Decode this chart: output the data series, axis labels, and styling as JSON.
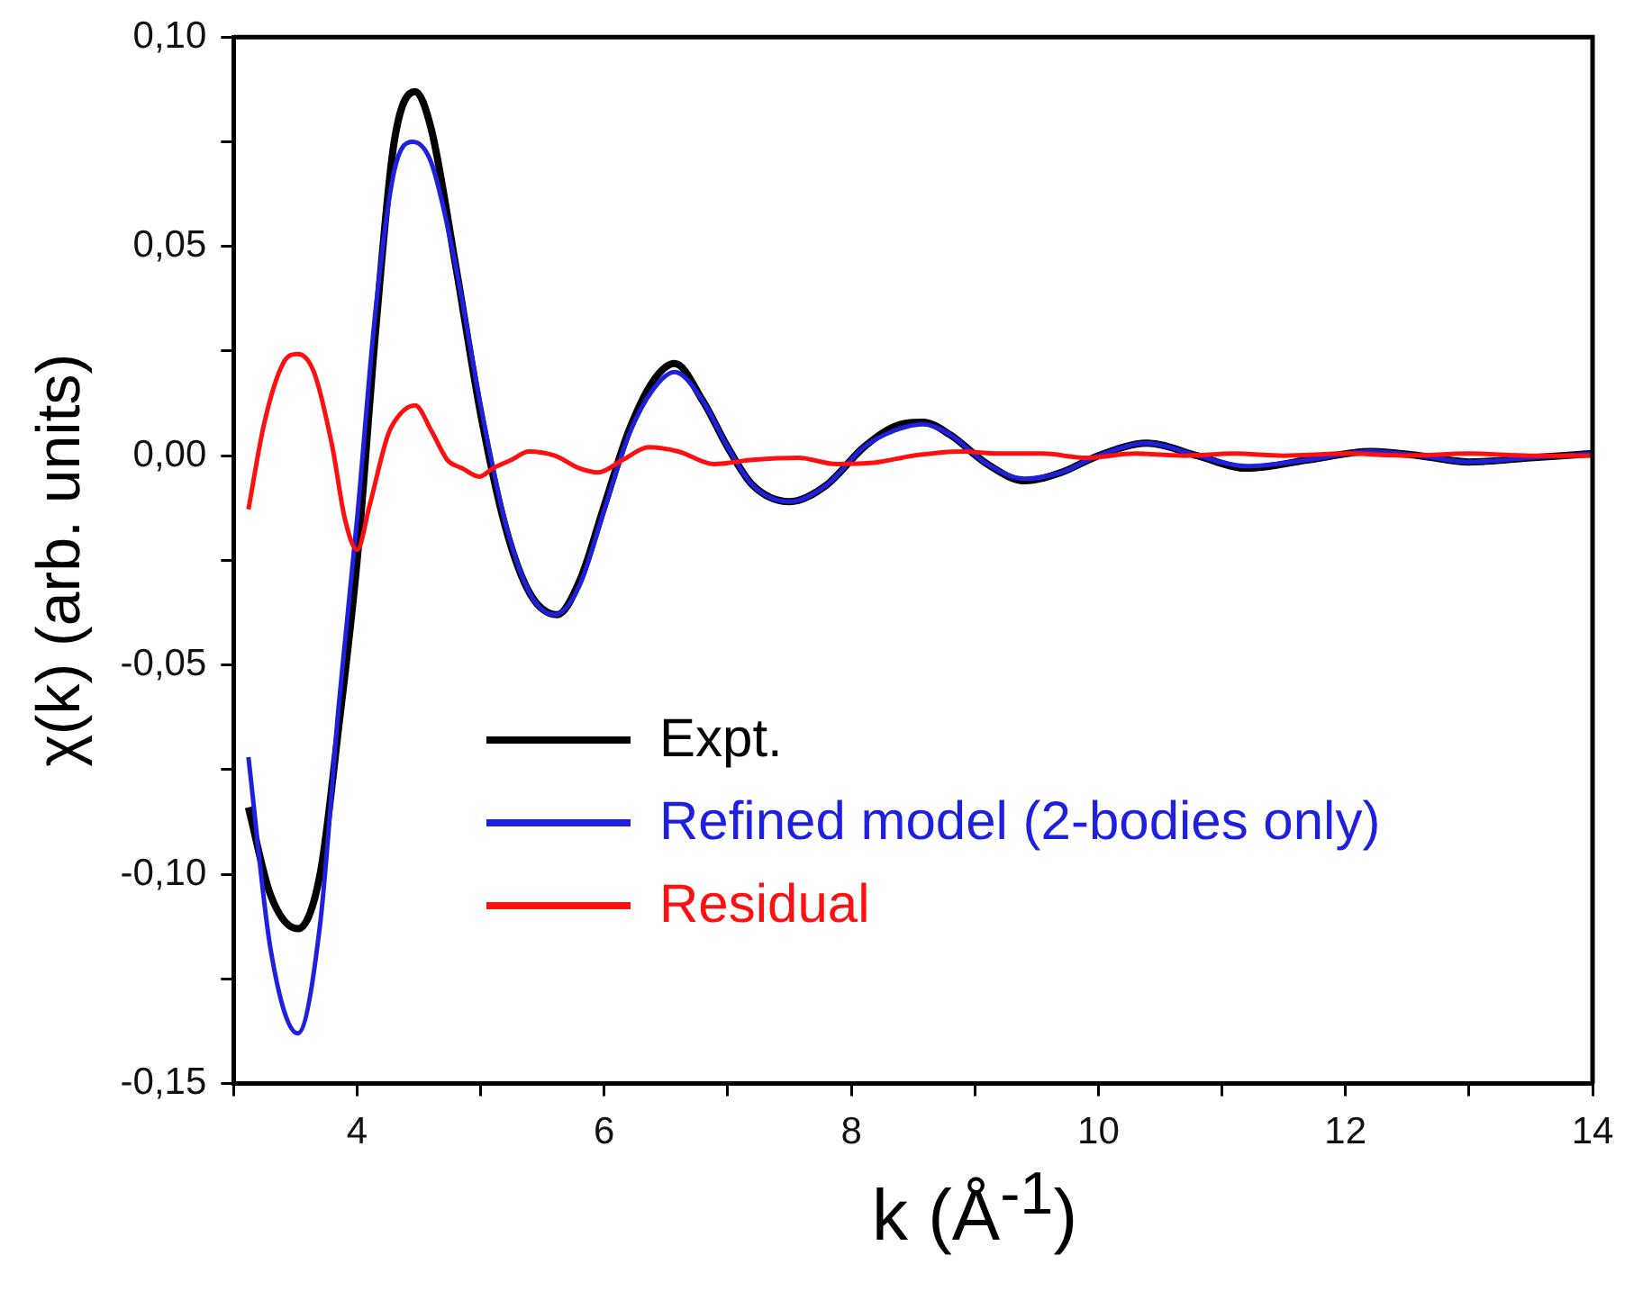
{
  "chart_data": {
    "type": "line",
    "xlabel": "k (Å$^{-1}$)",
    "ylabel": "χ(k) (arb. units)",
    "xlim": [
      3,
      14
    ],
    "ylim": [
      -0.15,
      0.1
    ],
    "xticks": [
      {
        "value": 3,
        "label": null
      },
      4,
      {
        "value": 5,
        "label": null
      },
      6,
      {
        "value": 7,
        "label": null
      },
      8,
      {
        "value": 9,
        "label": null
      },
      10,
      {
        "value": 11,
        "label": null
      },
      12,
      {
        "value": 13,
        "label": null
      },
      14
    ],
    "yticks": [
      {
        "value": -0.15,
        "label": "-0,15"
      },
      {
        "value": -0.125,
        "label": null
      },
      {
        "value": -0.1,
        "label": "-0,10"
      },
      {
        "value": -0.075,
        "label": null
      },
      {
        "value": -0.05,
        "label": "-0,05"
      },
      {
        "value": -0.025,
        "label": null
      },
      {
        "value": 0,
        "label": "0,00"
      },
      {
        "value": 0.025,
        "label": null
      },
      {
        "value": 0.05,
        "label": "0,05"
      },
      {
        "value": 0.075,
        "label": null
      },
      {
        "value": 0.1,
        "label": "0,10"
      }
    ],
    "grid": false,
    "legend": "bottom left",
    "marker": "none",
    "line_style": "solid",
    "series": [
      {
        "name": "Expt.",
        "color": "#000000",
        "x": [
          3.12,
          3.3,
          3.52,
          3.7,
          3.85,
          4.0,
          4.15,
          4.3,
          4.47,
          4.6,
          4.8,
          5.0,
          5.2,
          5.4,
          5.62,
          5.8,
          6.0,
          6.2,
          6.4,
          6.57,
          6.8,
          7.0,
          7.2,
          7.5,
          7.8,
          8.1,
          8.35,
          8.58,
          8.8,
          9.1,
          9.4,
          9.7,
          10.0,
          10.4,
          10.8,
          11.2,
          11.7,
          12.2,
          12.6,
          13.0,
          13.5,
          14.0
        ],
        "values": [
          -0.084,
          -0.105,
          -0.113,
          -0.1,
          -0.065,
          -0.025,
          0.03,
          0.075,
          0.087,
          0.078,
          0.045,
          0.01,
          -0.017,
          -0.033,
          -0.038,
          -0.03,
          -0.012,
          0.006,
          0.018,
          0.022,
          0.013,
          0.002,
          -0.007,
          -0.011,
          -0.007,
          0.002,
          0.007,
          0.008,
          0.005,
          -0.002,
          -0.006,
          -0.004,
          0,
          0.003,
          0,
          -0.003,
          -0.001,
          0.001,
          0,
          -0.0015,
          -0.0005,
          0.0005
        ]
      },
      {
        "name": "Refined model (2-bodies only)",
        "color": "#1f1fe0",
        "x": [
          3.12,
          3.3,
          3.52,
          3.7,
          3.85,
          4.0,
          4.15,
          4.3,
          4.45,
          4.6,
          4.8,
          5.0,
          5.2,
          5.4,
          5.6,
          5.8,
          6.0,
          6.2,
          6.4,
          6.57,
          6.8,
          7.0,
          7.2,
          7.5,
          7.8,
          8.1,
          8.35,
          8.58,
          8.8,
          9.1,
          9.4,
          9.7,
          10.0,
          10.4,
          10.8,
          11.2,
          11.7,
          12.2,
          12.6,
          13.0,
          13.5,
          14.0
        ],
        "values": [
          -0.072,
          -0.118,
          -0.138,
          -0.112,
          -0.06,
          -0.015,
          0.035,
          0.068,
          0.075,
          0.07,
          0.045,
          0.012,
          -0.016,
          -0.033,
          -0.038,
          -0.031,
          -0.013,
          0.005,
          0.016,
          0.02,
          0.013,
          0.002,
          -0.007,
          -0.011,
          -0.007,
          0.002,
          0.006,
          0.0075,
          0.005,
          -0.002,
          -0.0055,
          -0.004,
          0,
          0.003,
          0,
          -0.0025,
          -0.001,
          0.001,
          0,
          -0.0015,
          -0.0005,
          0.0005
        ]
      },
      {
        "name": "Residual",
        "color": "#ff1010",
        "x": [
          3.12,
          3.25,
          3.4,
          3.52,
          3.65,
          3.8,
          3.9,
          4.0,
          4.1,
          4.25,
          4.35,
          4.47,
          4.6,
          4.73,
          4.85,
          4.99,
          5.1,
          5.25,
          5.39,
          5.6,
          5.8,
          5.95,
          6.15,
          6.36,
          6.6,
          6.89,
          7.2,
          7.57,
          7.88,
          8.18,
          8.5,
          8.9,
          9.2,
          9.55,
          9.9,
          10.3,
          10.7,
          11.1,
          11.5,
          12.0,
          12.5,
          13.0,
          13.5,
          14.0
        ],
        "values": [
          -0.0128,
          0.008,
          0.022,
          0.0243,
          0.02,
          0.002,
          -0.015,
          -0.0225,
          -0.012,
          0.005,
          0.01,
          0.012,
          0.006,
          -0.001,
          -0.003,
          -0.005,
          -0.003,
          -0.001,
          0.001,
          0,
          -0.003,
          -0.004,
          -0.001,
          0.002,
          0.001,
          -0.002,
          -0.001,
          -0.0005,
          -0.002,
          -0.0017,
          0,
          0.001,
          0.0005,
          0.0005,
          -0.0005,
          0.0005,
          0,
          0.0005,
          0,
          0.0005,
          0,
          0.0005,
          0,
          0
        ]
      }
    ]
  }
}
